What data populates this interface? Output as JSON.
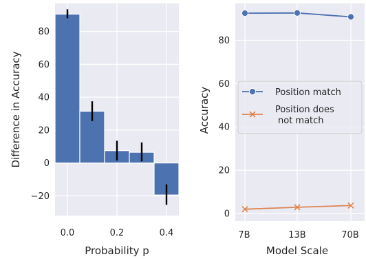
{
  "chart_data": [
    {
      "type": "bar",
      "x": [
        0.0,
        0.1,
        0.2,
        0.3,
        0.4
      ],
      "values": [
        90.5,
        31.5,
        7.5,
        6.5,
        -19.5
      ],
      "error_low": [
        88,
        25.5,
        1.5,
        1,
        -25.5
      ],
      "error_high": [
        93.5,
        37.5,
        13.5,
        12.5,
        -13
      ],
      "xlabel": "Probability p",
      "ylabel": "Difference in Accuracy",
      "xlim": [
        -0.05,
        0.45
      ],
      "ylim": [
        -32,
        97
      ],
      "xticks": [
        0.0,
        0.2,
        0.4
      ],
      "xtick_labels": [
        "0.0",
        "0.2",
        "0.4"
      ],
      "yticks": [
        -20,
        0,
        20,
        40,
        60,
        80
      ],
      "ytick_labels": [
        "−20",
        "0",
        "20",
        "40",
        "60",
        "80"
      ],
      "grid": true,
      "bar_color": "#4c72b0",
      "error_color": "#000000",
      "background_color": "#eaeaf2"
    },
    {
      "type": "line",
      "categories": [
        "7B",
        "13B",
        "70B"
      ],
      "series": [
        {
          "name": "Position match",
          "values": [
            92.5,
            92.6,
            90.8
          ],
          "color": "#4c72b0",
          "marker": "circle"
        },
        {
          "name": "Position does\nnot match",
          "values": [
            2.0,
            2.9,
            3.7
          ],
          "color": "#dd8452",
          "marker": "x"
        }
      ],
      "xlabel": "Model Scale",
      "ylabel": "Accuracy",
      "ylim": [
        -3.5,
        97
      ],
      "yticks": [
        0,
        20,
        40,
        60,
        80
      ],
      "ytick_labels": [
        "0",
        "20",
        "40",
        "60",
        "80"
      ],
      "legend_position": "center-right",
      "grid": true,
      "background_color": "#eaeaf2"
    }
  ]
}
